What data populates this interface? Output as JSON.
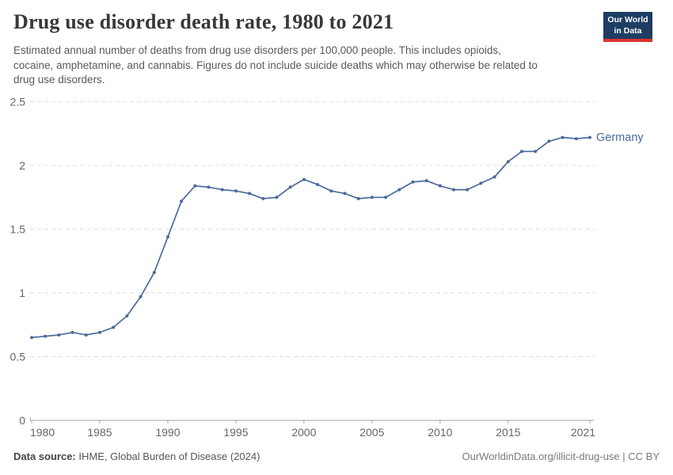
{
  "header": {
    "title": "Drug use disorder death rate, 1980 to 2021",
    "subtitle_lines": [
      "Estimated annual number of deaths from drug use disorders per 100,000 people. This includes opioids,",
      "cocaine, amphetamine, and cannabis. Figures do not include suicide deaths which may otherwise be related to",
      "drug use disorders."
    ],
    "logo": {
      "line1": "Our World",
      "line2": "in Data"
    }
  },
  "chart_data": {
    "type": "line",
    "title": "Drug use disorder death rate, 1980 to 2021",
    "xlabel": "",
    "ylabel": "",
    "xlim": [
      1980,
      2021
    ],
    "ylim": [
      0,
      2.5
    ],
    "x_ticks": [
      1980,
      1985,
      1990,
      1995,
      2000,
      2005,
      2010,
      2015,
      2021
    ],
    "y_ticks": [
      0,
      0.5,
      1,
      1.5,
      2,
      2.5
    ],
    "grid": "horizontal-dashed",
    "legend_position": "end-of-line-label",
    "series": [
      {
        "name": "Germany",
        "color": "#4C6A9C",
        "x": [
          1980,
          1981,
          1982,
          1983,
          1984,
          1985,
          1986,
          1987,
          1988,
          1989,
          1990,
          1991,
          1992,
          1993,
          1994,
          1995,
          1996,
          1997,
          1998,
          1999,
          2000,
          2001,
          2002,
          2003,
          2004,
          2005,
          2006,
          2007,
          2008,
          2009,
          2010,
          2011,
          2012,
          2013,
          2014,
          2015,
          2016,
          2017,
          2018,
          2019,
          2020,
          2021
        ],
        "values": [
          0.65,
          0.66,
          0.67,
          0.69,
          0.67,
          0.69,
          0.73,
          0.82,
          0.97,
          1.16,
          1.44,
          1.72,
          1.84,
          1.83,
          1.81,
          1.8,
          1.78,
          1.74,
          1.75,
          1.83,
          1.89,
          1.85,
          1.8,
          1.78,
          1.74,
          1.75,
          1.75,
          1.81,
          1.87,
          1.88,
          1.84,
          1.81,
          1.81,
          1.86,
          1.91,
          2.03,
          2.11,
          2.11,
          2.19,
          2.22,
          2.21,
          2.22
        ]
      }
    ]
  },
  "footer": {
    "source_label": "Data source:",
    "source_text": " IHME, Global Burden of Disease (2024)",
    "link_text": "OurWorldinData.org/illicit-drug-use | CC BY"
  },
  "colors": {
    "line": "#4C6A9C",
    "grid": "#dedede",
    "axis": "#a5a5a5",
    "tick_text": "#666666",
    "title_text": "#383838",
    "subtitle_text": "#595959",
    "logo_bg": "#1d3d63",
    "logo_accent": "#d8352e"
  }
}
